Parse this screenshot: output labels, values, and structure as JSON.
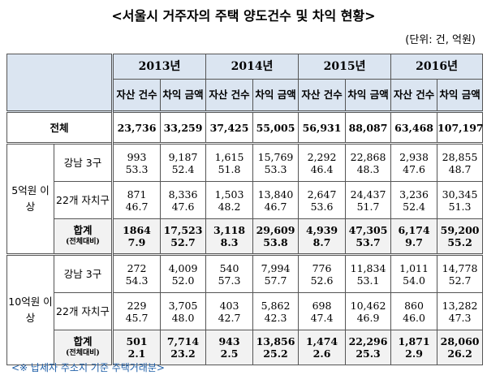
{
  "title": "<서울시 거주자의 주택 양도건수 및 차익 현황>",
  "unit": "(단위: 건, 억원)",
  "years": [
    "2013년",
    "2014년",
    "2015년",
    "2016년"
  ],
  "subheaders": {
    "count": "자산 건수",
    "gain": "차익 금액"
  },
  "total_row": {
    "label": "전체",
    "values": [
      "23,736",
      "33,259",
      "37,425",
      "55,005",
      "56,931",
      "88,087",
      "63,468",
      "107,197"
    ]
  },
  "groups": [
    {
      "label": "5억원 이상",
      "rows": [
        {
          "label": "강남 3구",
          "values": [
            "993",
            "9,187",
            "1,615",
            "15,769",
            "2,292",
            "22,868",
            "2,938",
            "28,855"
          ],
          "ratios": [
            "53.3",
            "52.4",
            "51.8",
            "53.3",
            "46.4",
            "48.3",
            "47.6",
            "48.7"
          ]
        },
        {
          "label": "22개 자치구",
          "values": [
            "871",
            "8,336",
            "1,503",
            "13,840",
            "2,647",
            "24,437",
            "3,236",
            "30,345"
          ],
          "ratios": [
            "46.7",
            "47.6",
            "48.2",
            "46.7",
            "53.6",
            "51.7",
            "52.4",
            "51.3"
          ]
        }
      ],
      "subtotal": {
        "label": "합계",
        "sublabel": "(전체대비)",
        "values": [
          "1864",
          "17,523",
          "3,118",
          "29,609",
          "4,939",
          "47,305",
          "6,174",
          "59,200"
        ],
        "ratios": [
          "7.9",
          "52.7",
          "8.3",
          "53.8",
          "8.7",
          "53.7",
          "9.7",
          "55.2"
        ]
      }
    },
    {
      "label": "10억원 이상",
      "rows": [
        {
          "label": "강남 3구",
          "values": [
            "272",
            "4,009",
            "540",
            "7,994",
            "776",
            "11,834",
            "1,011",
            "14,778"
          ],
          "ratios": [
            "54.3",
            "52.0",
            "57.3",
            "57.7",
            "52.6",
            "53.1",
            "54.0",
            "52.7"
          ]
        },
        {
          "label": "22개 자치구",
          "values": [
            "229",
            "3,705",
            "403",
            "5,862",
            "698",
            "10,462",
            "860",
            "13,282"
          ],
          "ratios": [
            "45.7",
            "48.0",
            "42.7",
            "42.3",
            "47.4",
            "46.9",
            "46.0",
            "47.3"
          ]
        }
      ],
      "subtotal": {
        "label": "합계",
        "sublabel": "(전체대비)",
        "values": [
          "501",
          "7,714",
          "943",
          "13,856",
          "1,474",
          "22,296",
          "1,871",
          "28,060"
        ],
        "ratios": [
          "2.1",
          "23.2",
          "2.5",
          "25.2",
          "2.6",
          "25.3",
          "2.9",
          "26.2"
        ]
      }
    }
  ],
  "footnote": "<※ 납세자 주소지 기준 주택거래분>",
  "colors": {
    "header_bg": "#dbe5f1",
    "subtotal_bg": "#f2f2f2",
    "footnote": "#1f5fa8"
  }
}
